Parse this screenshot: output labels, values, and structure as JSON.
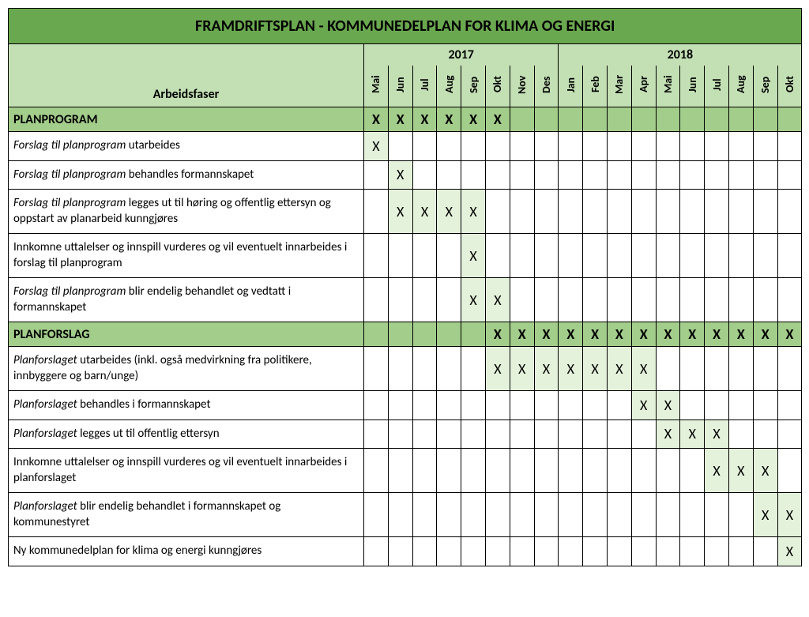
{
  "title": "FRAMDRIFTSPLAN - KOMMUNEDELPLAN FOR KLIMA OG ENERGI",
  "phase_header": "Arbeidsfaser",
  "years": [
    "2017",
    "2018"
  ],
  "months": [
    "Mai",
    "Jun",
    "Jul",
    "Aug",
    "Sep",
    "Okt",
    "Nov",
    "Des",
    "Jan",
    "Feb",
    "Mar",
    "Apr",
    "Mai",
    "Jun",
    "Jul",
    "Aug",
    "Sep",
    "Okt"
  ],
  "colors": {
    "title_bg": "#6aa84f",
    "header_bg": "#c3e0b4",
    "section_bg": "#a2cd8a",
    "filled_bg": "#e4f2db",
    "border": "#000000",
    "text": "#000000"
  },
  "mark_symbol": "X",
  "sections": [
    {
      "label": "PLANPROGRAM",
      "marks": [
        true,
        true,
        true,
        true,
        true,
        true,
        false,
        false,
        false,
        false,
        false,
        false,
        false,
        false,
        false,
        false,
        false,
        false
      ],
      "rows": [
        {
          "italic_prefix": "Forslag til planprogram",
          "rest": " utarbeides",
          "marks": [
            true,
            false,
            false,
            false,
            false,
            false,
            false,
            false,
            false,
            false,
            false,
            false,
            false,
            false,
            false,
            false,
            false,
            false
          ]
        },
        {
          "italic_prefix": "Forslag til planprogram",
          "rest": " behandles formannskapet",
          "marks": [
            false,
            true,
            false,
            false,
            false,
            false,
            false,
            false,
            false,
            false,
            false,
            false,
            false,
            false,
            false,
            false,
            false,
            false
          ]
        },
        {
          "italic_prefix": "Forslag til planprogram",
          "rest": " legges ut til høring og offentlig ettersyn og oppstart av planarbeid kunngjøres",
          "marks": [
            false,
            true,
            true,
            true,
            true,
            false,
            false,
            false,
            false,
            false,
            false,
            false,
            false,
            false,
            false,
            false,
            false,
            false
          ]
        },
        {
          "italic_prefix": "",
          "rest": "Innkomne uttalelser og innspill vurderes og vil eventuelt innarbeides i forslag til planprogram",
          "marks": [
            false,
            false,
            false,
            false,
            true,
            false,
            false,
            false,
            false,
            false,
            false,
            false,
            false,
            false,
            false,
            false,
            false,
            false
          ]
        },
        {
          "italic_prefix": "Forslag til planprogram",
          "rest": " blir endelig behandlet og vedtatt i formannskapet",
          "marks": [
            false,
            false,
            false,
            false,
            true,
            true,
            false,
            false,
            false,
            false,
            false,
            false,
            false,
            false,
            false,
            false,
            false,
            false
          ]
        }
      ]
    },
    {
      "label": "PLANFORSLAG",
      "marks": [
        false,
        false,
        false,
        false,
        false,
        true,
        true,
        true,
        true,
        true,
        true,
        true,
        true,
        true,
        true,
        true,
        true,
        true
      ],
      "rows": [
        {
          "italic_prefix": "Planforslaget",
          "rest": " utarbeides (inkl. også medvirkning fra politikere, innbyggere og barn/unge)",
          "marks": [
            false,
            false,
            false,
            false,
            false,
            true,
            true,
            true,
            true,
            true,
            true,
            true,
            false,
            false,
            false,
            false,
            false,
            false
          ]
        },
        {
          "italic_prefix": "Planforslaget",
          "rest": " behandles i formannskapet",
          "marks": [
            false,
            false,
            false,
            false,
            false,
            false,
            false,
            false,
            false,
            false,
            false,
            true,
            true,
            false,
            false,
            false,
            false,
            false
          ]
        },
        {
          "italic_prefix": "Planforslaget",
          "rest": " legges ut til offentlig ettersyn",
          "marks": [
            false,
            false,
            false,
            false,
            false,
            false,
            false,
            false,
            false,
            false,
            false,
            false,
            true,
            true,
            true,
            false,
            false,
            false
          ]
        },
        {
          "italic_prefix": "",
          "rest": "Innkomne uttalelser og innspill vurderes og vil eventuelt innarbeides i planforslaget",
          "marks": [
            false,
            false,
            false,
            false,
            false,
            false,
            false,
            false,
            false,
            false,
            false,
            false,
            false,
            false,
            true,
            true,
            true,
            false
          ]
        },
        {
          "italic_prefix": "Planforslaget",
          "rest": " blir endelig behandlet i formannskapet og kommunestyret",
          "marks": [
            false,
            false,
            false,
            false,
            false,
            false,
            false,
            false,
            false,
            false,
            false,
            false,
            false,
            false,
            false,
            false,
            true,
            true
          ]
        },
        {
          "italic_prefix": "",
          "rest": "Ny kommunedelplan for klima og energi kunngjøres",
          "marks": [
            false,
            false,
            false,
            false,
            false,
            false,
            false,
            false,
            false,
            false,
            false,
            false,
            false,
            false,
            false,
            false,
            false,
            true
          ]
        }
      ]
    }
  ]
}
